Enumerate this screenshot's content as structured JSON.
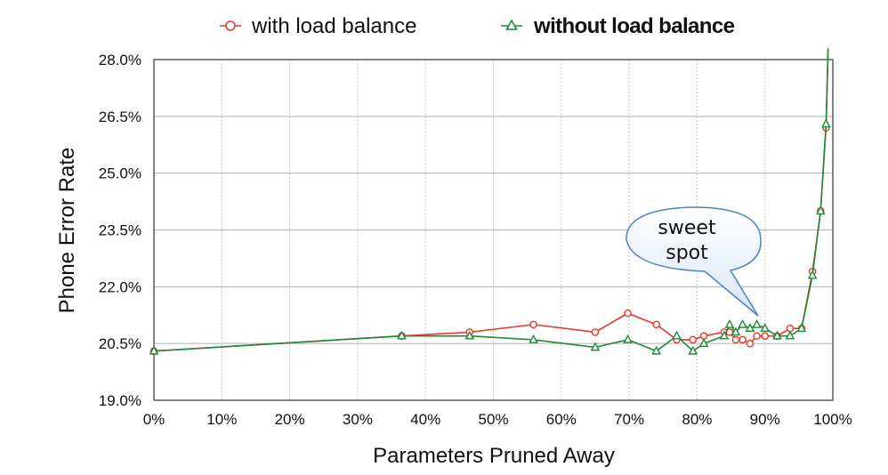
{
  "chart_data": {
    "type": "line",
    "xlabel": "Parameters Pruned Away",
    "ylabel": "Phone Error Rate",
    "xlim": [
      0,
      100
    ],
    "ylim": [
      19.0,
      28.0
    ],
    "xticks": [
      "0%",
      "10%",
      "20%",
      "30%",
      "40%",
      "50%",
      "60%",
      "70%",
      "80%",
      "90%",
      "100%"
    ],
    "yticks": [
      "19.0%",
      "20.5%",
      "22.0%",
      "23.5%",
      "25.0%",
      "26.5%",
      "28.0%"
    ],
    "xtick_values": [
      0,
      10,
      20,
      30,
      40,
      50,
      60,
      70,
      80,
      90,
      100
    ],
    "ytick_values": [
      19.0,
      20.5,
      22.0,
      23.5,
      25.0,
      26.5,
      28.0
    ],
    "grid": true,
    "legend_position": "top",
    "annotation": {
      "text_lines": [
        "sweet",
        "spot"
      ],
      "target": [
        89.5,
        20.9
      ]
    },
    "series": [
      {
        "name": "with load balance",
        "color": "#e8392b",
        "marker": "circle",
        "points": [
          [
            0,
            20.3
          ],
          [
            36.5,
            20.7
          ],
          [
            46.5,
            20.8
          ],
          [
            55.9,
            21.0
          ],
          [
            65,
            20.8
          ],
          [
            69.8,
            21.3
          ],
          [
            74,
            21.0
          ],
          [
            77,
            20.6
          ],
          [
            79.4,
            20.6
          ],
          [
            81,
            20.7
          ],
          [
            84,
            20.8
          ],
          [
            84.8,
            20.8
          ],
          [
            85.7,
            20.6
          ],
          [
            86.7,
            20.6
          ],
          [
            87.8,
            20.5
          ],
          [
            88.8,
            20.7
          ],
          [
            90,
            20.7
          ],
          [
            91.8,
            20.7
          ],
          [
            93.7,
            20.9
          ],
          [
            95.4,
            20.9
          ],
          [
            97,
            22.4
          ],
          [
            98.2,
            24.0
          ],
          [
            99,
            26.2
          ],
          [
            99.3,
            28.2
          ]
        ]
      },
      {
        "name": "without load balance",
        "color": "#1f8a3a",
        "marker": "triangle",
        "points": [
          [
            0,
            20.3
          ],
          [
            36.5,
            20.7
          ],
          [
            46.5,
            20.7
          ],
          [
            55.9,
            20.6
          ],
          [
            65,
            20.4
          ],
          [
            69.8,
            20.6
          ],
          [
            74,
            20.3
          ],
          [
            77,
            20.7
          ],
          [
            79.4,
            20.3
          ],
          [
            81,
            20.5
          ],
          [
            84,
            20.7
          ],
          [
            84.8,
            21.0
          ],
          [
            85.7,
            20.8
          ],
          [
            86.7,
            21.0
          ],
          [
            87.8,
            20.9
          ],
          [
            88.8,
            21.0
          ],
          [
            90,
            20.9
          ],
          [
            91.8,
            20.7
          ],
          [
            93.7,
            20.7
          ],
          [
            95.4,
            20.9
          ],
          [
            97,
            22.3
          ],
          [
            98.2,
            24.0
          ],
          [
            99,
            26.3
          ],
          [
            99.3,
            28.3
          ]
        ]
      }
    ]
  }
}
